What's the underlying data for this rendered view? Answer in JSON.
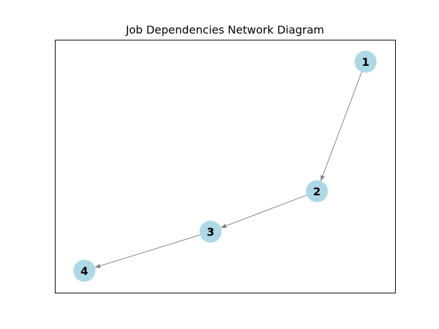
{
  "title": "Job Dependencies Network Diagram",
  "colors": {
    "node_fill": "#add8e6",
    "edge": "#808080",
    "frame": "#000000",
    "background": "#ffffff"
  },
  "nodes": [
    {
      "id": "1",
      "label": "1"
    },
    {
      "id": "2",
      "label": "2"
    },
    {
      "id": "3",
      "label": "3"
    },
    {
      "id": "4",
      "label": "4"
    }
  ],
  "edges": [
    {
      "source": "1",
      "target": "2"
    },
    {
      "source": "2",
      "target": "3"
    },
    {
      "source": "3",
      "target": "4"
    }
  ]
}
